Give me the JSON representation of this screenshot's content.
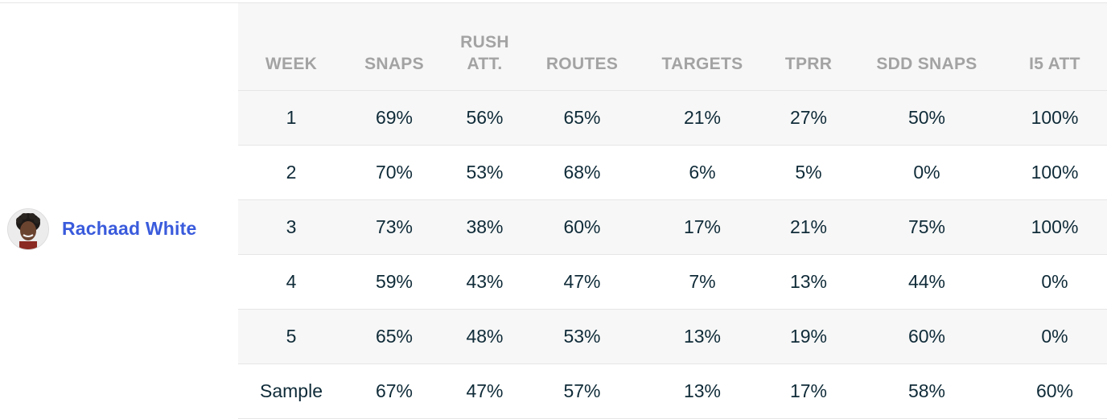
{
  "player": {
    "name": "Rachaad White",
    "avatar_icon": "player-headshot-icon"
  },
  "table": {
    "headers": [
      "WEEK",
      "SNAPS",
      "RUSH ATT.",
      "ROUTES",
      "TARGETS",
      "TPRR",
      "SDD SNAPS",
      "I5 ATT"
    ],
    "rows": [
      [
        "1",
        "69%",
        "56%",
        "65%",
        "21%",
        "27%",
        "50%",
        "100%"
      ],
      [
        "2",
        "70%",
        "53%",
        "68%",
        "6%",
        "5%",
        "0%",
        "100%"
      ],
      [
        "3",
        "73%",
        "38%",
        "60%",
        "17%",
        "21%",
        "75%",
        "100%"
      ],
      [
        "4",
        "59%",
        "43%",
        "47%",
        "7%",
        "13%",
        "44%",
        "0%"
      ],
      [
        "5",
        "65%",
        "48%",
        "53%",
        "13%",
        "19%",
        "60%",
        "0%"
      ],
      [
        "Sample",
        "67%",
        "47%",
        "57%",
        "13%",
        "17%",
        "58%",
        "60%"
      ]
    ]
  },
  "colors": {
    "link": "#3a5bdc",
    "header_text": "#a3a3a3",
    "cell_text": "#0f2b38",
    "stripe": "#f7f7f7"
  }
}
